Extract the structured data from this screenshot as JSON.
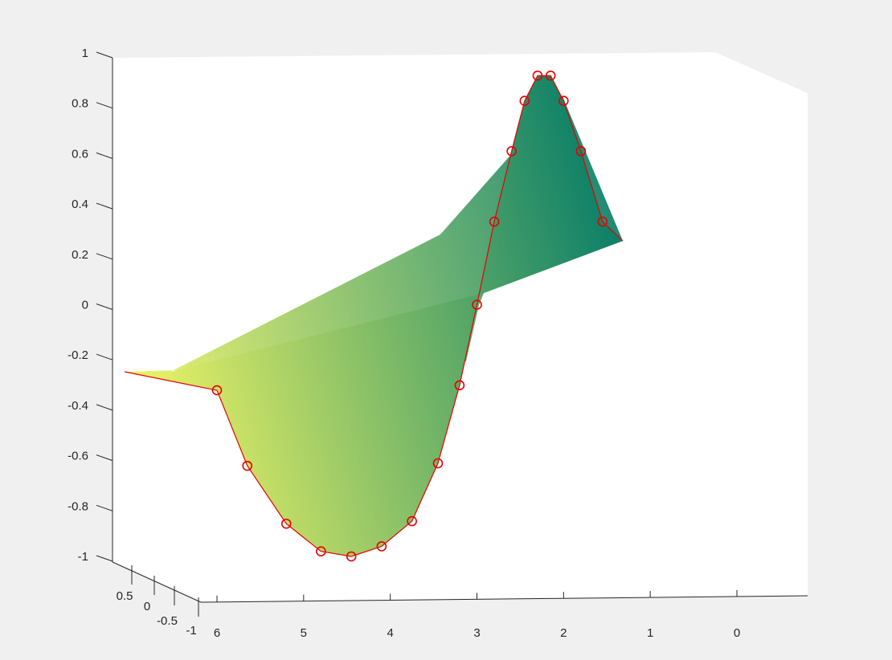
{
  "chart_data": {
    "type": "surface3d",
    "title": "",
    "xlabel": "",
    "ylabel": "",
    "zlabel": "",
    "x_ticks": [
      "6",
      "5",
      "4",
      "3",
      "2",
      "1",
      "0"
    ],
    "y_ticks": [
      "0.5",
      "0",
      "-0.5",
      "-1"
    ],
    "z_ticks": [
      "1",
      "0.8",
      "0.6",
      "0.4",
      "0.2",
      "0",
      "-0.2",
      "-0.4",
      "-0.6",
      "-0.8",
      "-1"
    ],
    "xlim": [
      -0.8,
      6.3
    ],
    "ylim": [
      -1,
      1
    ],
    "zlim": [
      -1,
      1
    ],
    "grid": false,
    "colormap": "summer",
    "colormap_colors": [
      "#f0f566",
      "#0b7f68"
    ],
    "marker_color": "#e60000",
    "series": [
      {
        "marker": "circle",
        "x": [
          6.0,
          5.65,
          5.2,
          4.8,
          4.45,
          4.1,
          3.75,
          3.45,
          3.2,
          3.0,
          2.8,
          2.6,
          2.45,
          2.3,
          2.15,
          2.0,
          1.8,
          1.55,
          1.3
        ],
        "y": [
          0,
          0,
          0,
          0,
          0,
          0,
          0,
          0,
          0,
          0,
          0,
          0,
          0,
          0,
          0,
          0,
          0,
          0,
          0
        ],
        "z": [
          -0.34,
          -0.64,
          -0.87,
          -0.98,
          -1.0,
          -0.96,
          -0.86,
          -0.63,
          -0.32,
          0.0,
          0.33,
          0.61,
          0.81,
          0.91,
          0.91,
          0.81,
          0.61,
          0.33,
          0.25
        ]
      }
    ]
  }
}
